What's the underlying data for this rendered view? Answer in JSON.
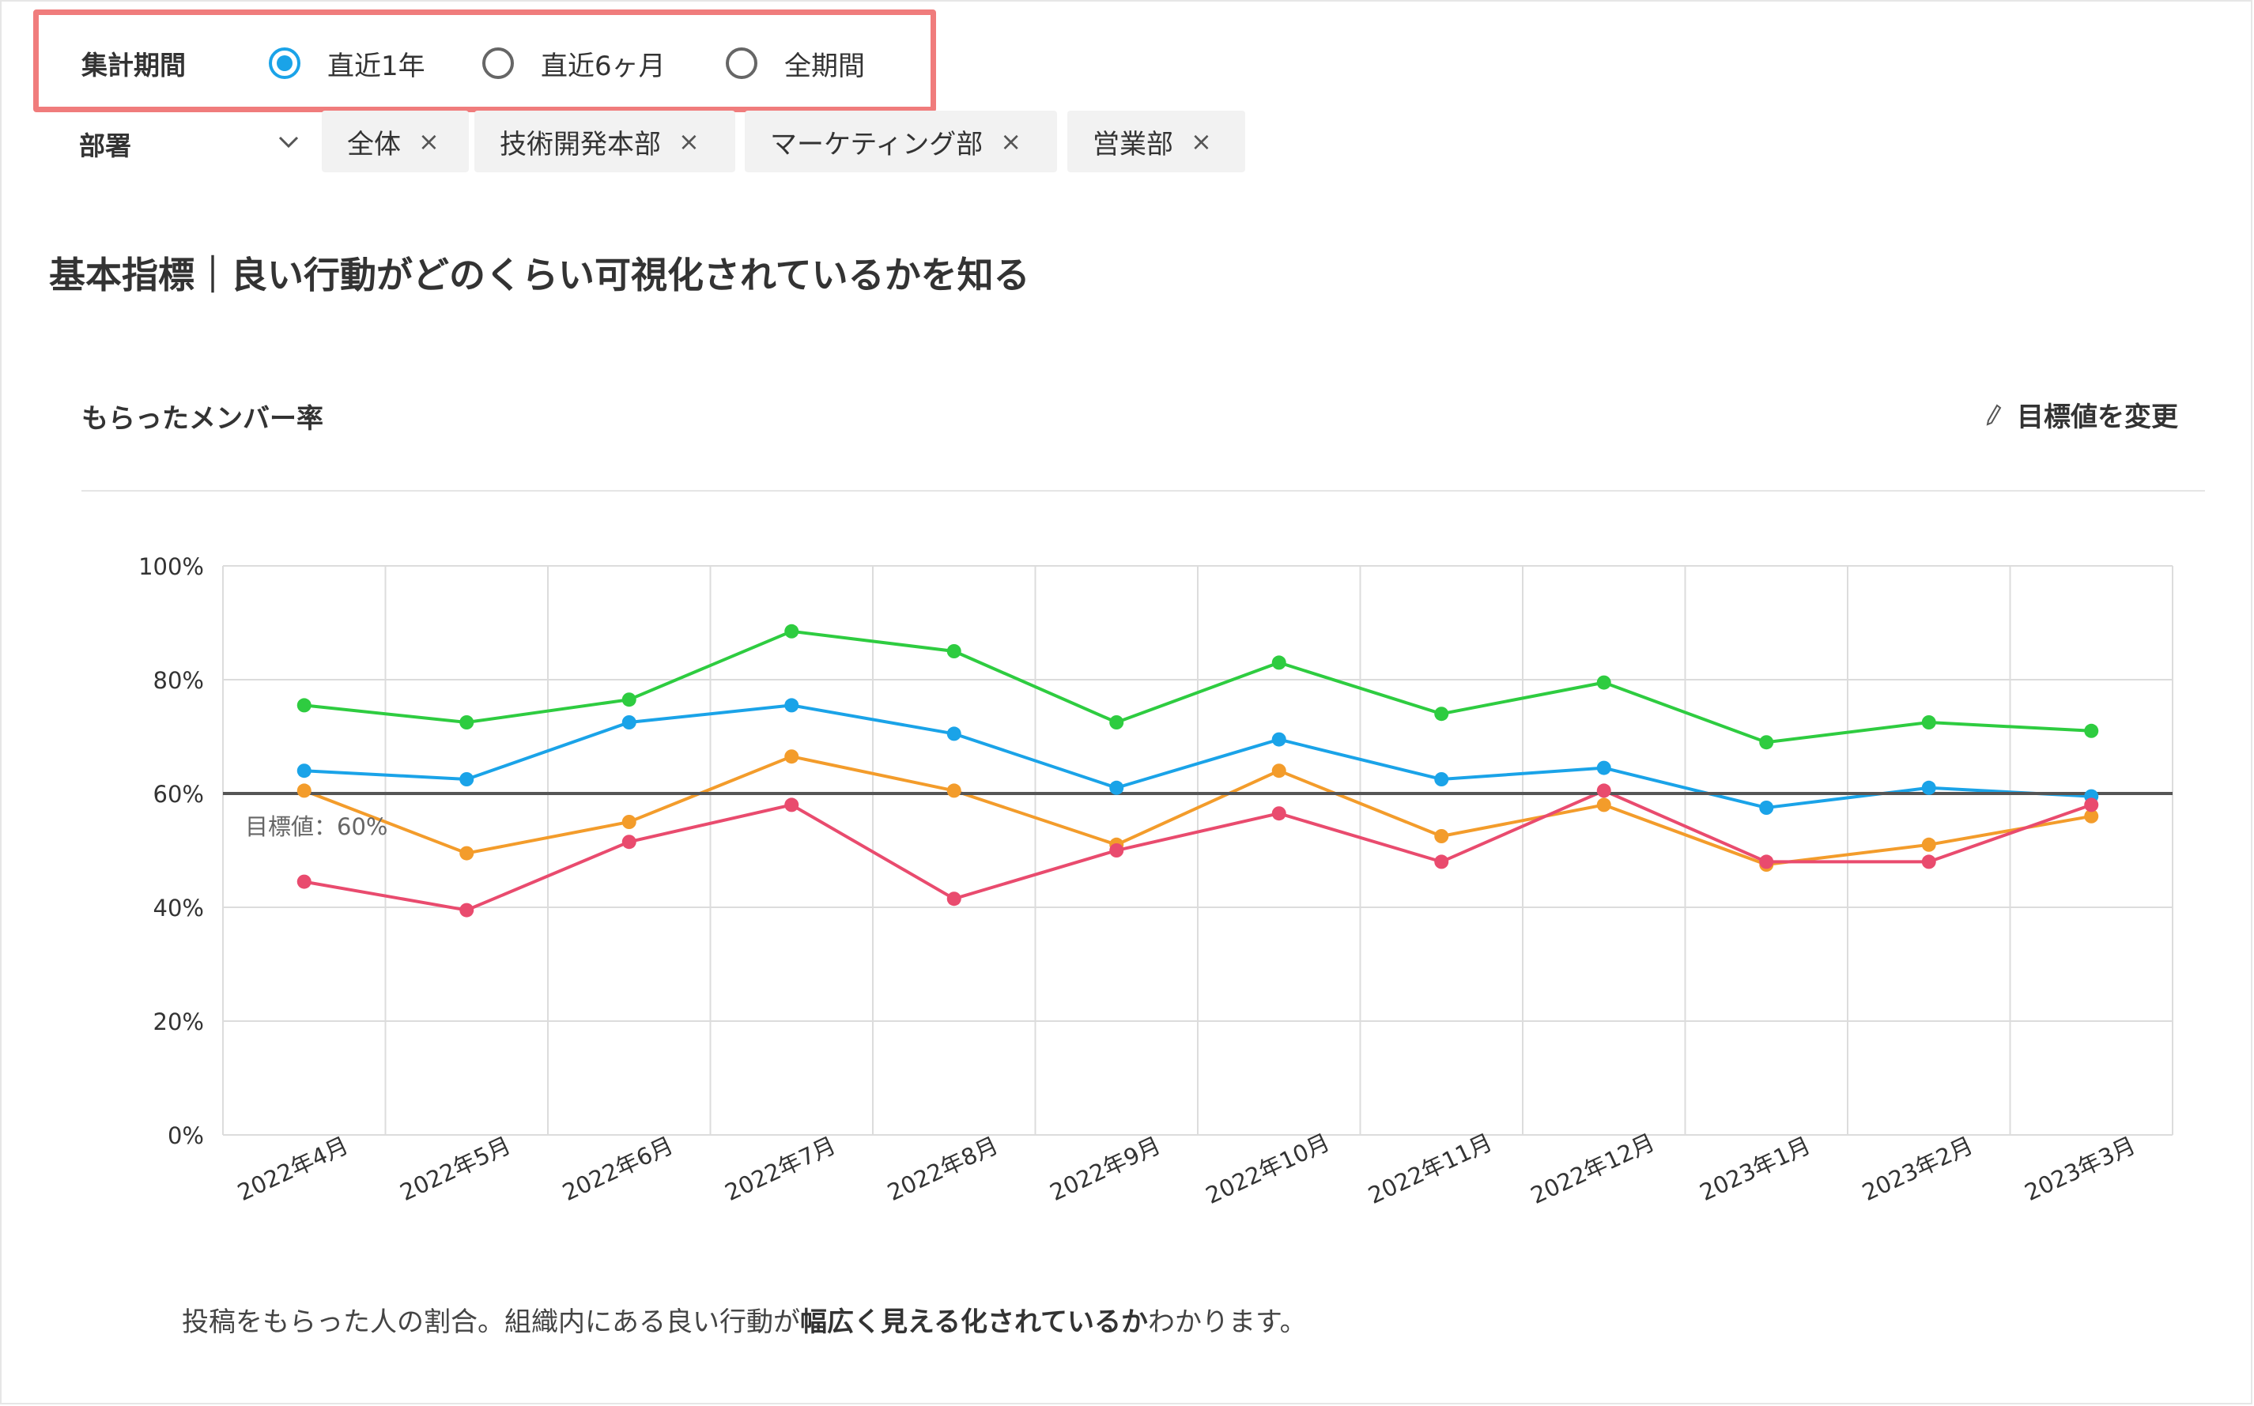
{
  "period": {
    "label": "集計期間",
    "options": [
      {
        "label": "直近1年",
        "checked": true
      },
      {
        "label": "直近6ヶ月",
        "checked": false
      },
      {
        "label": "全期間",
        "checked": false
      }
    ]
  },
  "department": {
    "label": "部署",
    "chips": [
      "全体",
      "技術開発本部",
      "マーケティング部",
      "営業部"
    ],
    "chip_close": "×"
  },
  "section_title": "基本指標｜良い行動がどのくらい可視化されているかを知る",
  "chart_header": {
    "title": "もらったメンバー率",
    "edit_target_label": "目標値を変更",
    "edit_icon": "pencil-icon"
  },
  "colors": {
    "accent": "#1aa3e8",
    "highlight_border": "#f07c7c"
  },
  "chart_data": {
    "type": "line",
    "categories": [
      "2022年4月",
      "2022年5月",
      "2022年6月",
      "2022年7月",
      "2022年8月",
      "2022年9月",
      "2022年10月",
      "2022年11月",
      "2022年12月",
      "2023年1月",
      "2023年2月",
      "2023年3月"
    ],
    "ylim": [
      0,
      100
    ],
    "yticks": [
      "0%",
      "20%",
      "40%",
      "60%",
      "80%",
      "100%"
    ],
    "grid": true,
    "series": [
      {
        "color": "#2ecc40",
        "values": [
          75.5,
          72.5,
          76.5,
          88.5,
          85,
          72.5,
          83,
          74,
          79.5,
          69,
          72.5,
          71
        ]
      },
      {
        "color": "#1aa3e8",
        "values": [
          64,
          62.5,
          72.5,
          75.5,
          70.5,
          61,
          69.5,
          62.5,
          64.5,
          57.5,
          61,
          59.5
        ]
      },
      {
        "color": "#f39c2b",
        "values": [
          60.5,
          49.5,
          55,
          66.5,
          60.5,
          51,
          64,
          52.5,
          58,
          47.5,
          51,
          56
        ]
      },
      {
        "color": "#e94b6e",
        "values": [
          44.5,
          39.5,
          51.5,
          58,
          41.5,
          50,
          56.5,
          48,
          60.5,
          48,
          48,
          58
        ]
      }
    ],
    "target_line": {
      "value": 60,
      "label": "目標値：60%",
      "color": "#555555"
    }
  },
  "description": {
    "part1": "投稿をもらった人の割合。組織内にある良い行動が",
    "bold": "幅広く見える化されているか",
    "part2": "わかります。"
  }
}
